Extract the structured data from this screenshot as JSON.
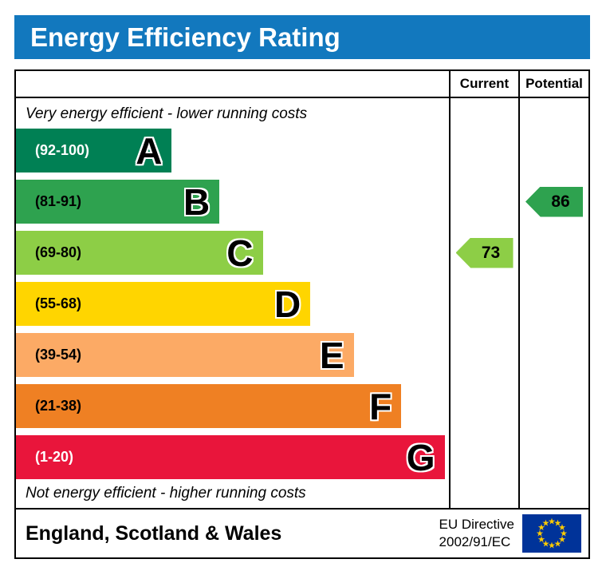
{
  "title": "Energy Efficiency Rating",
  "columns": {
    "current": "Current",
    "potential": "Potential"
  },
  "top_note": "Very energy efficient - lower running costs",
  "bottom_note": "Not energy efficient - higher running costs",
  "footer": {
    "region": "England, Scotland & Wales",
    "directive_line1": "EU Directive",
    "directive_line2": "2002/91/EC"
  },
  "colors": {
    "header_bg": "#1278be",
    "border": "#000000",
    "eu_flag_blue": "#003399",
    "eu_flag_stars": "#ffcc00"
  },
  "chart_data": {
    "type": "bar",
    "orientation": "horizontal",
    "title": "Energy Efficiency Rating",
    "scale_min": 1,
    "scale_max": 100,
    "bands": [
      {
        "letter": "A",
        "range": "(92-100)",
        "color": "#008054",
        "width_pct": 36,
        "text_color": "#ffffff"
      },
      {
        "letter": "B",
        "range": "(81-91)",
        "color": "#2ea24f",
        "width_pct": 47,
        "text_color": "#000000"
      },
      {
        "letter": "C",
        "range": "(69-80)",
        "color": "#8dce46",
        "width_pct": 57,
        "text_color": "#000000"
      },
      {
        "letter": "D",
        "range": "(55-68)",
        "color": "#ffd500",
        "width_pct": 68,
        "text_color": "#000000"
      },
      {
        "letter": "E",
        "range": "(39-54)",
        "color": "#fcaa65",
        "width_pct": 78,
        "text_color": "#000000"
      },
      {
        "letter": "F",
        "range": "(21-38)",
        "color": "#ef8023",
        "width_pct": 89,
        "text_color": "#000000"
      },
      {
        "letter": "G",
        "range": "(1-20)",
        "color": "#e9153b",
        "width_pct": 99,
        "text_color": "#ffffff"
      }
    ],
    "current": {
      "label": "Current",
      "value": 73,
      "band": "C",
      "color": "#8dce46"
    },
    "potential": {
      "label": "Potential",
      "value": 86,
      "band": "B",
      "color": "#2ea24f"
    }
  }
}
